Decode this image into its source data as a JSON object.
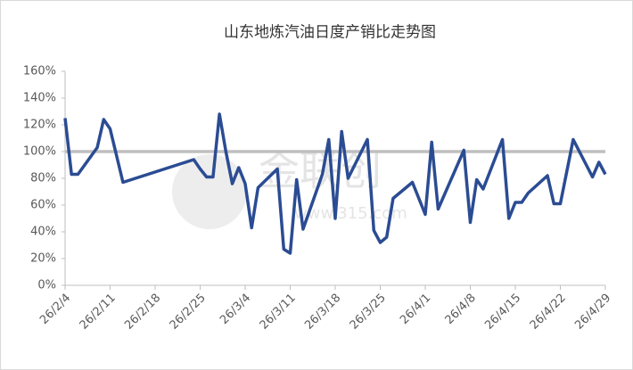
{
  "chart_data": {
    "type": "line",
    "title": "山东地炼汽油日度产销比走势图",
    "watermark": "金联创",
    "watermark_url": "www.315.com",
    "x": [
      "26/2/4",
      "26/2/5",
      "26/2/6",
      "26/2/9",
      "26/2/10",
      "26/2/11",
      "26/2/13",
      "26/2/24",
      "26/2/25",
      "26/2/26",
      "26/2/27",
      "26/2/28",
      "26/3/1",
      "26/3/2",
      "26/3/3",
      "26/3/4",
      "26/3/5",
      "26/3/6",
      "26/3/9",
      "26/3/10",
      "26/3/11",
      "26/3/12",
      "26/3/13",
      "26/3/16",
      "26/3/17",
      "26/3/18",
      "26/3/19",
      "26/3/20",
      "26/3/23",
      "26/3/24",
      "26/3/25",
      "26/3/26",
      "26/3/27",
      "26/3/30",
      "26/4/1",
      "26/4/2",
      "26/4/3",
      "26/4/7",
      "26/4/8",
      "26/4/9",
      "26/4/10",
      "26/4/13",
      "26/4/14",
      "26/4/15",
      "26/4/16",
      "26/4/17",
      "26/4/20",
      "26/4/21",
      "26/4/22",
      "26/4/24",
      "26/4/27",
      "26/4/28",
      "26/4/29"
    ],
    "series": [
      {
        "color": "#2b4c93",
        "values": [
          125,
          83,
          83,
          103,
          124,
          117,
          77,
          94,
          87,
          81,
          81,
          128,
          100,
          76,
          88,
          76,
          43,
          73,
          87,
          27,
          24,
          79,
          42,
          83,
          109,
          50,
          115,
          80,
          109,
          41,
          32,
          36,
          65,
          77,
          53,
          107,
          57,
          101,
          47,
          79,
          72,
          109,
          50,
          62,
          62,
          69,
          82,
          61,
          61,
          109,
          81,
          92,
          83
        ]
      }
    ],
    "reference_line": {
      "value": 100,
      "color": "#bfbfbf"
    },
    "xlim": [
      "26/2/4",
      "26/4/29"
    ],
    "xticks": [
      "26/2/4",
      "26/2/11",
      "26/2/18",
      "26/2/25",
      "26/3/4",
      "26/3/11",
      "26/3/18",
      "26/3/25",
      "26/4/1",
      "26/4/8",
      "26/4/15",
      "26/4/22",
      "26/4/29"
    ],
    "ylim": [
      0,
      160
    ],
    "yticks": [
      {
        "value": 0,
        "label": "0%"
      },
      {
        "value": 20,
        "label": "20%"
      },
      {
        "value": 40,
        "label": "40%"
      },
      {
        "value": 60,
        "label": "60%"
      },
      {
        "value": 80,
        "label": "80%"
      },
      {
        "value": 100,
        "label": "100%"
      },
      {
        "value": 120,
        "label": "120%"
      },
      {
        "value": 140,
        "label": "140%"
      },
      {
        "value": 160,
        "label": "160%"
      }
    ]
  }
}
